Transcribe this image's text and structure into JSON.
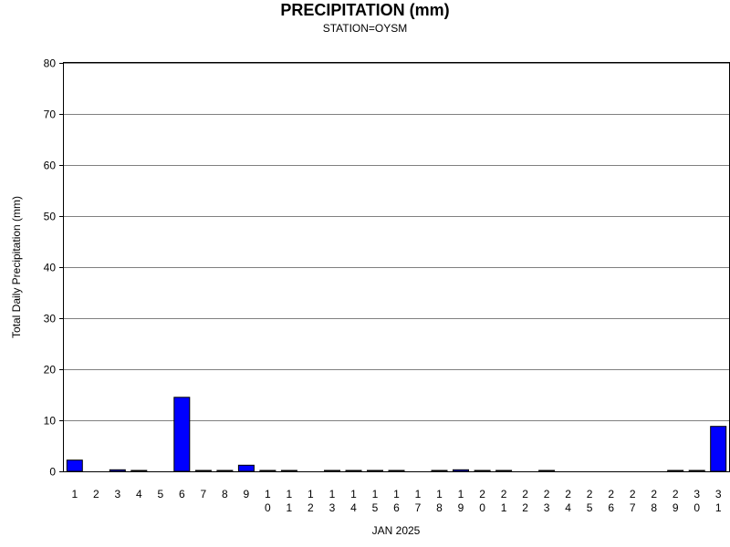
{
  "chart_data": {
    "type": "bar",
    "title": "PRECIPITATION (mm)",
    "subtitle": "STATION=OYSM",
    "xlabel": "JAN 2025",
    "ylabel": "Total Daily Precipitation (mm)",
    "ylim": [
      0,
      80
    ],
    "yticks": [
      0,
      10,
      20,
      30,
      40,
      50,
      60,
      70,
      80
    ],
    "grid": true,
    "categories": [
      "1",
      "2",
      "3",
      "4",
      "5",
      "6",
      "7",
      "8",
      "9",
      "10",
      "11",
      "12",
      "13",
      "14",
      "15",
      "16",
      "17",
      "18",
      "19",
      "20",
      "21",
      "22",
      "23",
      "24",
      "25",
      "26",
      "27",
      "28",
      "29",
      "30",
      "31"
    ],
    "values": [
      2.2,
      0,
      0.3,
      0.1,
      0,
      14.5,
      0.1,
      0.1,
      1.2,
      0.1,
      0.1,
      0,
      0.1,
      0.1,
      0.1,
      0.1,
      0,
      0.1,
      0.3,
      0.1,
      0.1,
      0,
      0.1,
      0,
      0,
      0,
      0,
      0,
      0.1,
      0.1,
      8.8
    ],
    "bar_color": "#0000ff"
  }
}
